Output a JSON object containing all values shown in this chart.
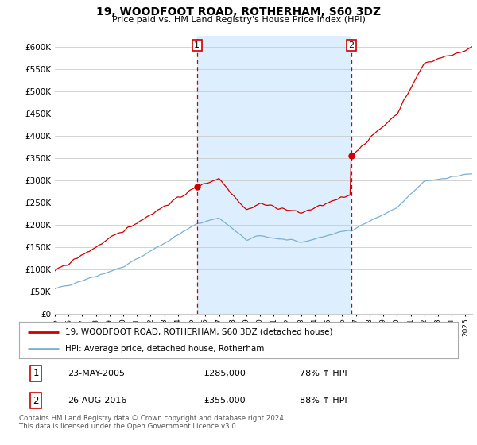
{
  "title": "19, WOODFOOT ROAD, ROTHERHAM, S60 3DZ",
  "subtitle": "Price paid vs. HM Land Registry's House Price Index (HPI)",
  "legend_line1": "19, WOODFOOT ROAD, ROTHERHAM, S60 3DZ (detached house)",
  "legend_line2": "HPI: Average price, detached house, Rotherham",
  "annotation1_label": "1",
  "annotation1_date": "23-MAY-2005",
  "annotation1_price": "£285,000",
  "annotation1_hpi": "78% ↑ HPI",
  "annotation1_year": 2005.38,
  "annotation1_value": 285000,
  "annotation2_label": "2",
  "annotation2_date": "26-AUG-2016",
  "annotation2_price": "£355,000",
  "annotation2_hpi": "88% ↑ HPI",
  "annotation2_year": 2016.65,
  "annotation2_value": 355000,
  "red_color": "#cc0000",
  "blue_color": "#7bafd4",
  "shade_color": "#ddeeff",
  "annotation_box_color": "#cc0000",
  "grid_color": "#cccccc",
  "background_color": "#ffffff",
  "ylim": [
    0,
    625000
  ],
  "yticks": [
    0,
    50000,
    100000,
    150000,
    200000,
    250000,
    300000,
    350000,
    400000,
    450000,
    500000,
    550000,
    600000
  ],
  "ytick_labels": [
    "£0",
    "£50K",
    "£100K",
    "£150K",
    "£200K",
    "£250K",
    "£300K",
    "£350K",
    "£400K",
    "£450K",
    "£500K",
    "£550K",
    "£600K"
  ],
  "footer_text": "Contains HM Land Registry data © Crown copyright and database right 2024.\nThis data is licensed under the Open Government Licence v3.0.",
  "xlim_start": 1995.0,
  "xlim_end": 2025.5
}
